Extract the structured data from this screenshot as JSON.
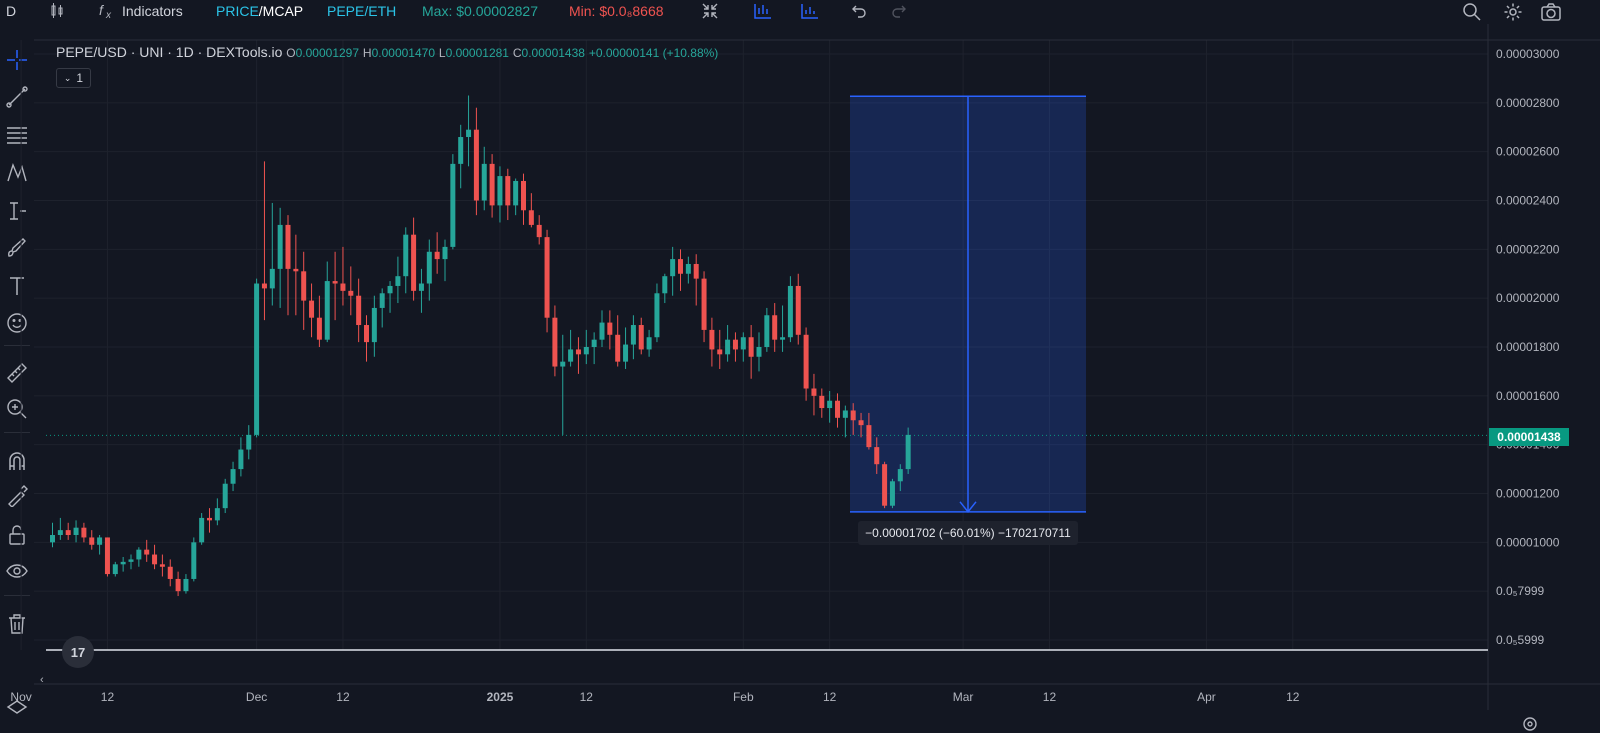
{
  "toolbar": {
    "symbol_letter": "D",
    "indicators_label": "Indicators",
    "price_label": "PRICE",
    "mcap_label": "/MCAP",
    "pair_label": "PEPE/ETH",
    "max_label": "Max: $0.00002827",
    "min_label": "Min: $0.0₈8668",
    "icons": [
      "candles-icon",
      "fx-icon",
      "compress-icon",
      "bar-replay-icon",
      "compare-icon",
      "undo-icon",
      "redo-icon",
      "magnifier-icon",
      "gear-icon",
      "camera-icon"
    ]
  },
  "legend": {
    "title": "PEPE/USD · UNI · 1D · DEXTools.io",
    "o_label": "O",
    "o_value": "0.00001297",
    "h_label": "H",
    "h_value": "0.00001470",
    "l_label": "L",
    "l_value": "0.00001281",
    "c_label": "C",
    "c_value": "0.00001438",
    "change": "+0.00000141 (+10.88%)",
    "collapse": "1"
  },
  "left_tools": [
    "crosshair-icon",
    "trend-line-icon",
    "fib-icon",
    "pattern-icon",
    "projection-icon",
    "brush-icon",
    "text-icon",
    "emoji-icon",
    "ruler-icon",
    "zoom-in-icon",
    "magnet-icon",
    "lock-drawing-icon",
    "unlock-icon",
    "eye-icon",
    "trash-icon"
  ],
  "measure": {
    "label": "−0.00001702 (−60.01%) −1702170711"
  },
  "current_price": "0.00001438",
  "chart_data": {
    "type": "candlestick",
    "title": "PEPE/USD · UNI · 1D · DEXTools.io",
    "y_range": [
      5.7e-06,
      3.05e-05
    ],
    "y_ticks": [
      {
        "v": 3e-05,
        "label": "0.00003000"
      },
      {
        "v": 2.8e-05,
        "label": "0.00002800"
      },
      {
        "v": 2.6e-05,
        "label": "0.00002600"
      },
      {
        "v": 2.4e-05,
        "label": "0.00002400"
      },
      {
        "v": 2.2e-05,
        "label": "0.00002200"
      },
      {
        "v": 2e-05,
        "label": "0.00002000"
      },
      {
        "v": 1.8e-05,
        "label": "0.00001800"
      },
      {
        "v": 1.6e-05,
        "label": "0.00001600"
      },
      {
        "v": 1.4e-05,
        "label": "0.00001400"
      },
      {
        "v": 1.2e-05,
        "label": "0.00001200"
      },
      {
        "v": 1e-05,
        "label": "0.00001000"
      },
      {
        "v": 8e-06,
        "label": "0.0₅7999"
      },
      {
        "v": 6e-06,
        "label": "0.0₅5999"
      }
    ],
    "x_ticks": [
      {
        "day": -4,
        "label": "Nov"
      },
      {
        "day": 7,
        "label": "12"
      },
      {
        "day": 26,
        "label": "Dec"
      },
      {
        "day": 37,
        "label": "12"
      },
      {
        "day": 57,
        "label": "2025",
        "bold": true
      },
      {
        "day": 68,
        "label": "12"
      },
      {
        "day": 88,
        "label": "Feb"
      },
      {
        "day": 99,
        "label": "12"
      },
      {
        "day": 116,
        "label": "Mar"
      },
      {
        "day": 127,
        "label": "12"
      },
      {
        "day": 147,
        "label": "Apr"
      },
      {
        "day": 158,
        "label": "12"
      }
    ],
    "candles": [
      [
        1e-05,
        1.08e-05,
        1.03e-05,
        9.8e-06
      ],
      [
        1.03e-05,
        1.1e-05,
        1.05e-05,
        1.01e-05
      ],
      [
        1.05e-05,
        1.08e-05,
        1.03e-05,
        1.01e-05
      ],
      [
        1.03e-05,
        1.09e-05,
        1.06e-05,
        1e-05
      ],
      [
        1.06e-05,
        1.08e-05,
        1.02e-05,
        1e-05
      ],
      [
        1.02e-05,
        1.05e-05,
        9.9e-06,
        9.7e-06
      ],
      [
        9.9e-06,
        1.03e-05,
        1.02e-05,
        9.5e-06
      ],
      [
        1.02e-05,
        1.02e-05,
        8.7e-06,
        8.6e-06
      ],
      [
        8.7e-06,
        9.2e-06,
        9.1e-06,
        8.6e-06
      ],
      [
        9.1e-06,
        9.4e-06,
        9.2e-06,
        8.8e-06
      ],
      [
        9.2e-06,
        9.5e-06,
        9.3e-06,
        8.9e-06
      ],
      [
        9.3e-06,
        9.8e-06,
        9.7e-06,
        9e-06
      ],
      [
        9.7e-06,
        1.01e-05,
        9.5e-06,
        9.2e-06
      ],
      [
        9.5e-06,
        9.9e-06,
        9.1e-06,
        8.9e-06
      ],
      [
        9.1e-06,
        9.5e-06,
        9e-06,
        8.6e-06
      ],
      [
        9e-06,
        9.3e-06,
        8.5e-06,
        8.2e-06
      ],
      [
        8.5e-06,
        8.8e-06,
        8e-06,
        7.8e-06
      ],
      [
        8e-06,
        8.7e-06,
        8.5e-06,
        7.9e-06
      ],
      [
        8.5e-06,
        1.02e-05,
        1e-05,
        8.4e-06
      ],
      [
        1e-05,
        1.12e-05,
        1.1e-05,
        9.9e-06
      ],
      [
        1.1e-05,
        1.14e-05,
        1.09e-05,
        1.04e-05
      ],
      [
        1.09e-05,
        1.18e-05,
        1.14e-05,
        1.07e-05
      ],
      [
        1.14e-05,
        1.26e-05,
        1.24e-05,
        1.12e-05
      ],
      [
        1.24e-05,
        1.33e-05,
        1.3e-05,
        1.21e-05
      ],
      [
        1.3e-05,
        1.43e-05,
        1.38e-05,
        1.27e-05
      ],
      [
        1.38e-05,
        1.48e-05,
        1.44e-05,
        1.34e-05
      ],
      [
        1.44e-05,
        2.08e-05,
        2.06e-05,
        1.43e-05
      ],
      [
        2.06e-05,
        2.56e-05,
        2.04e-05,
        1.91e-05
      ],
      [
        2.04e-05,
        2.39e-05,
        2.12e-05,
        1.97e-05
      ],
      [
        2.12e-05,
        2.37e-05,
        2.3e-05,
        1.96e-05
      ],
      [
        2.3e-05,
        2.34e-05,
        2.12e-05,
        1.93e-05
      ],
      [
        2.12e-05,
        2.26e-05,
        2.11e-05,
        1.93e-05
      ],
      [
        2.11e-05,
        2.19e-05,
        1.99e-05,
        1.87e-05
      ],
      [
        1.99e-05,
        2.06e-05,
        1.92e-05,
        1.84e-05
      ],
      [
        1.92e-05,
        2.01e-05,
        1.83e-05,
        1.8e-05
      ],
      [
        1.83e-05,
        2.15e-05,
        2.07e-05,
        1.82e-05
      ],
      [
        2.07e-05,
        2.19e-05,
        2.06e-05,
        1.91e-05
      ],
      [
        2.06e-05,
        2.21e-05,
        2.03e-05,
        1.97e-05
      ],
      [
        2.03e-05,
        2.13e-05,
        2.01e-05,
        1.93e-05
      ],
      [
        2.01e-05,
        2.08e-05,
        1.89e-05,
        1.82e-05
      ],
      [
        1.89e-05,
        1.93e-05,
        1.82e-05,
        1.74e-05
      ],
      [
        1.82e-05,
        2.01e-05,
        1.96e-05,
        1.76e-05
      ],
      [
        1.96e-05,
        2.04e-05,
        2.02e-05,
        1.88e-05
      ],
      [
        2.02e-05,
        2.07e-05,
        2.05e-05,
        1.94e-05
      ],
      [
        2.05e-05,
        2.17e-05,
        2.09e-05,
        1.98e-05
      ],
      [
        2.09e-05,
        2.29e-05,
        2.26e-05,
        2.02e-05
      ],
      [
        2.26e-05,
        2.33e-05,
        2.03e-05,
        1.99e-05
      ],
      [
        2.03e-05,
        2.12e-05,
        2.06e-05,
        1.94e-05
      ],
      [
        2.06e-05,
        2.24e-05,
        2.19e-05,
        1.99e-05
      ],
      [
        2.19e-05,
        2.27e-05,
        2.16e-05,
        2.1e-05
      ],
      [
        2.16e-05,
        2.24e-05,
        2.21e-05,
        2.07e-05
      ],
      [
        2.21e-05,
        2.59e-05,
        2.55e-05,
        2.2e-05
      ],
      [
        2.55e-05,
        2.71e-05,
        2.66e-05,
        2.45e-05
      ],
      [
        2.66e-05,
        2.83e-05,
        2.69e-05,
        2.54e-05
      ],
      [
        2.69e-05,
        2.78e-05,
        2.4e-05,
        2.34e-05
      ],
      [
        2.4e-05,
        2.62e-05,
        2.55e-05,
        2.36e-05
      ],
      [
        2.55e-05,
        2.59e-05,
        2.38e-05,
        2.33e-05
      ],
      [
        2.38e-05,
        2.54e-05,
        2.5e-05,
        2.31e-05
      ],
      [
        2.5e-05,
        2.53e-05,
        2.38e-05,
        2.32e-05
      ],
      [
        2.38e-05,
        2.49e-05,
        2.48e-05,
        2.34e-05
      ],
      [
        2.48e-05,
        2.51e-05,
        2.36e-05,
        2.3e-05
      ],
      [
        2.36e-05,
        2.43e-05,
        2.3e-05,
        2.29e-05
      ],
      [
        2.3e-05,
        2.34e-05,
        2.25e-05,
        2.22e-05
      ],
      [
        2.25e-05,
        2.28e-05,
        1.92e-05,
        1.86e-05
      ],
      [
        1.92e-05,
        1.97e-05,
        1.72e-05,
        1.68e-05
      ],
      [
        1.72e-05,
        1.85e-05,
        1.74e-05,
        1.44e-05
      ],
      [
        1.74e-05,
        1.87e-05,
        1.79e-05,
        1.72e-05
      ],
      [
        1.79e-05,
        1.84e-05,
        1.77e-05,
        1.69e-05
      ],
      [
        1.77e-05,
        1.87e-05,
        1.8e-05,
        1.73e-05
      ],
      [
        1.8e-05,
        1.86e-05,
        1.83e-05,
        1.73e-05
      ],
      [
        1.83e-05,
        1.95e-05,
        1.9e-05,
        1.8e-05
      ],
      [
        1.9e-05,
        1.95e-05,
        1.85e-05,
        1.79e-05
      ],
      [
        1.85e-05,
        1.93e-05,
        1.74e-05,
        1.72e-05
      ],
      [
        1.74e-05,
        1.88e-05,
        1.81e-05,
        1.71e-05
      ],
      [
        1.81e-05,
        1.93e-05,
        1.89e-05,
        1.75e-05
      ],
      [
        1.89e-05,
        1.92e-05,
        1.79e-05,
        1.77e-05
      ],
      [
        1.79e-05,
        1.87e-05,
        1.84e-05,
        1.76e-05
      ],
      [
        1.84e-05,
        2.06e-05,
        2.02e-05,
        1.82e-05
      ],
      [
        2.02e-05,
        2.1e-05,
        2.09e-05,
        1.98e-05
      ],
      [
        2.09e-05,
        2.21e-05,
        2.16e-05,
        2.01e-05
      ],
      [
        2.16e-05,
        2.2e-05,
        2.1e-05,
        2.03e-05
      ],
      [
        2.1e-05,
        2.17e-05,
        2.14e-05,
        2.06e-05
      ],
      [
        2.14e-05,
        2.18e-05,
        2.08e-05,
        1.97e-05
      ],
      [
        2.08e-05,
        2.11e-05,
        1.87e-05,
        1.82e-05
      ],
      [
        1.87e-05,
        1.92e-05,
        1.79e-05,
        1.72e-05
      ],
      [
        1.79e-05,
        1.87e-05,
        1.77e-05,
        1.71e-05
      ],
      [
        1.77e-05,
        1.89e-05,
        1.83e-05,
        1.74e-05
      ],
      [
        1.83e-05,
        1.86e-05,
        1.79e-05,
        1.74e-05
      ],
      [
        1.79e-05,
        1.86e-05,
        1.84e-05,
        1.74e-05
      ],
      [
        1.84e-05,
        1.89e-05,
        1.76e-05,
        1.67e-05
      ],
      [
        1.76e-05,
        1.86e-05,
        1.8e-05,
        1.7e-05
      ],
      [
        1.8e-05,
        1.96e-05,
        1.93e-05,
        1.78e-05
      ],
      [
        1.93e-05,
        1.98e-05,
        1.83e-05,
        1.78e-05
      ],
      [
        1.83e-05,
        1.97e-05,
        1.84e-05,
        1.78e-05
      ],
      [
        1.84e-05,
        2.09e-05,
        2.05e-05,
        1.82e-05
      ],
      [
        2.05e-05,
        2.1e-05,
        1.85e-05,
        1.81e-05
      ],
      [
        1.85e-05,
        1.88e-05,
        1.63e-05,
        1.58e-05
      ],
      [
        1.63e-05,
        1.69e-05,
        1.6e-05,
        1.52e-05
      ],
      [
        1.6e-05,
        1.63e-05,
        1.55e-05,
        1.51e-05
      ],
      [
        1.55e-05,
        1.62e-05,
        1.58e-05,
        1.49e-05
      ],
      [
        1.58e-05,
        1.61e-05,
        1.51e-05,
        1.47e-05
      ],
      [
        1.51e-05,
        1.56e-05,
        1.54e-05,
        1.43e-05
      ],
      [
        1.54e-05,
        1.57e-05,
        1.5e-05,
        1.44e-05
      ],
      [
        1.5e-05,
        1.53e-05,
        1.48e-05,
        1.43e-05
      ],
      [
        1.48e-05,
        1.53e-05,
        1.39e-05,
        1.38e-05
      ],
      [
        1.39e-05,
        1.43e-05,
        1.32e-05,
        1.28e-05
      ],
      [
        1.32e-05,
        1.33e-05,
        1.15e-05,
        1.14e-05
      ],
      [
        1.15e-05,
        1.26e-05,
        1.25e-05,
        1.14e-05
      ],
      [
        1.25e-05,
        1.32e-05,
        1.3e-05,
        1.21e-05
      ],
      [
        1.3e-05,
        1.47e-05,
        1.44e-05,
        1.28e-05
      ]
    ]
  }
}
